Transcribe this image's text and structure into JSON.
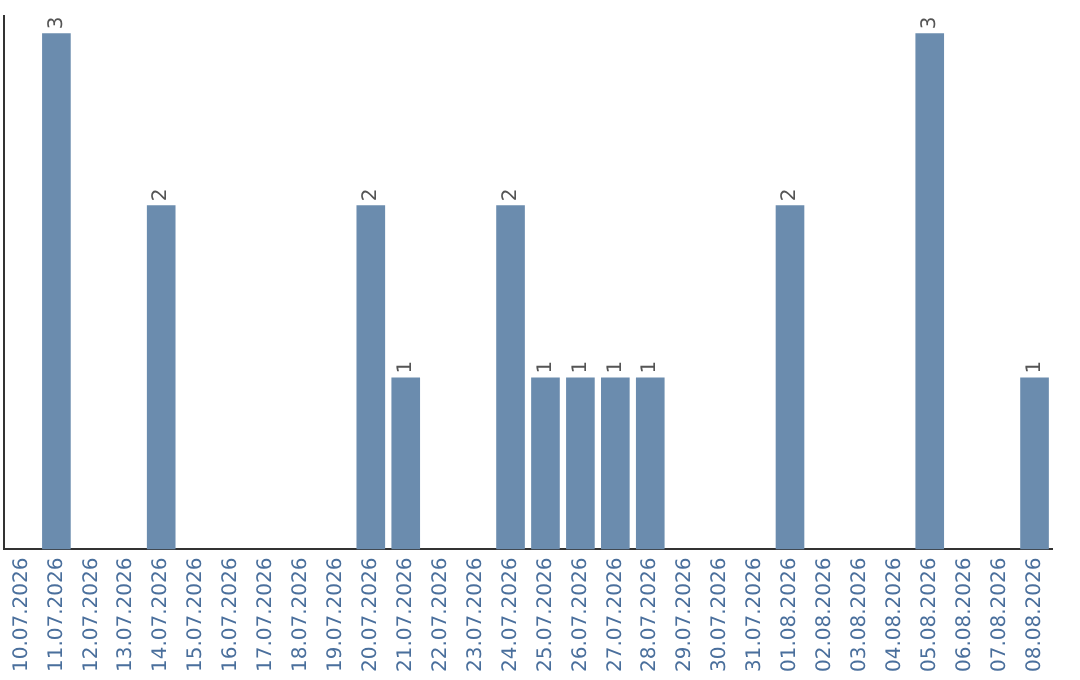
{
  "chart_data": {
    "type": "bar",
    "categories": [
      "10.07.2026",
      "11.07.2026",
      "12.07.2026",
      "13.07.2026",
      "14.07.2026",
      "15.07.2026",
      "16.07.2026",
      "17.07.2026",
      "18.07.2026",
      "19.07.2026",
      "20.07.2026",
      "21.07.2026",
      "22.07.2026",
      "23.07.2026",
      "24.07.2026",
      "25.07.2026",
      "26.07.2026",
      "27.07.2026",
      "28.07.2026",
      "29.07.2026",
      "30.07.2026",
      "31.07.2026",
      "01.08.2026",
      "02.08.2026",
      "03.08.2026",
      "04.08.2026",
      "05.08.2026",
      "06.08.2026",
      "07.08.2026",
      "08.08.2026"
    ],
    "values": [
      0,
      3,
      0,
      0,
      2,
      0,
      0,
      0,
      0,
      0,
      2,
      1,
      0,
      0,
      2,
      1,
      1,
      1,
      1,
      0,
      0,
      0,
      2,
      0,
      0,
      0,
      3,
      0,
      0,
      1
    ],
    "value_labels": [
      null,
      "3",
      null,
      null,
      "2",
      null,
      null,
      null,
      null,
      null,
      "2",
      "1",
      null,
      null,
      "2",
      "1",
      "1",
      "1",
      "1",
      null,
      null,
      null,
      "2",
      null,
      null,
      null,
      "3",
      null,
      null,
      "1"
    ],
    "color": "#6b8cae",
    "ylim": [
      0,
      3.1
    ],
    "tick_labels": "x",
    "grid": false,
    "legend": false
  }
}
